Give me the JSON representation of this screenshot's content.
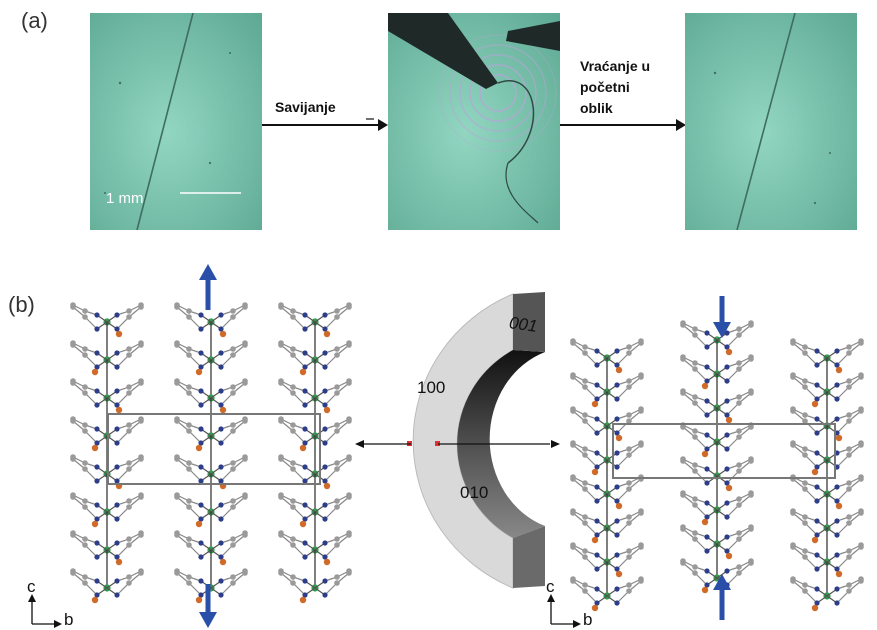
{
  "panel_a": {
    "label": "(a)",
    "step1": "Savijanje",
    "step2_lines": [
      "Vraćanje u",
      "početni",
      "oblik"
    ],
    "scale_bar": "1 mm"
  },
  "panel_b": {
    "label": "(b)",
    "faces": {
      "top": "001",
      "left": "100",
      "inner": "010"
    },
    "axes": {
      "vertical": "c",
      "horizontal": "b"
    }
  },
  "colors": {
    "crystal_bg": "#7cc2ab",
    "arrow_blue": "#2a4fa8",
    "metal_green": "#2e9e4a",
    "halide_orange": "#d06a28",
    "nitrogen_blue": "#2c3e8a",
    "carbon_grey": "#9a9a9a"
  }
}
